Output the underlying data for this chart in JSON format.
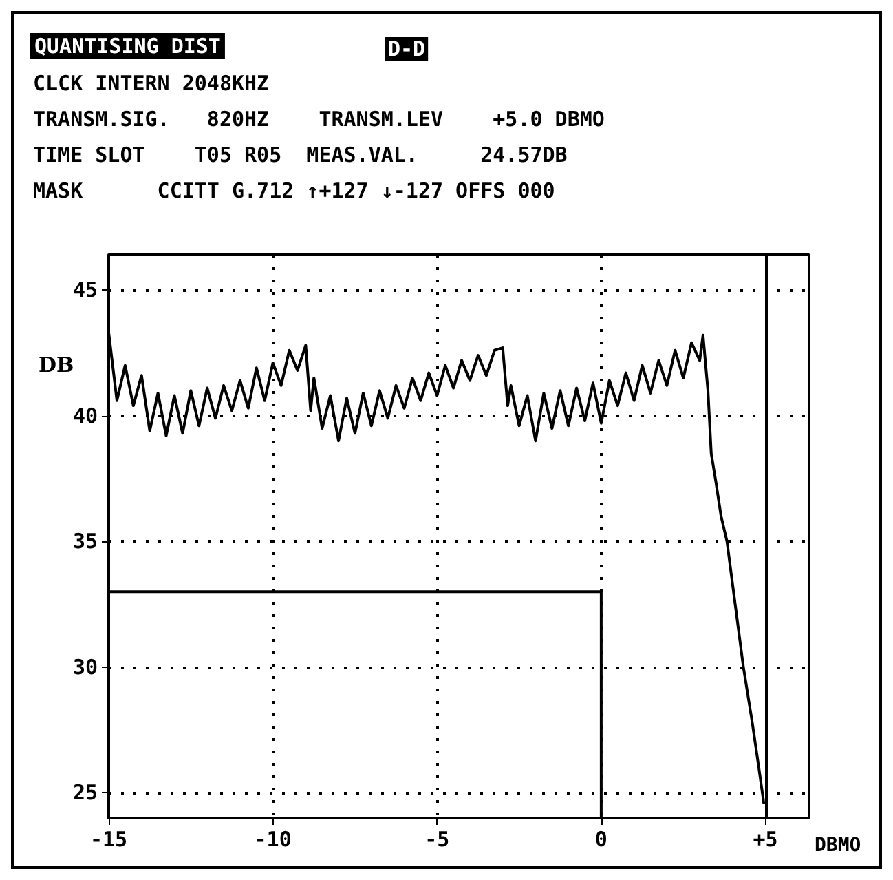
{
  "chart_data": {
    "type": "line",
    "title": "QUANTISING DIST",
    "xlabel": "DBMO",
    "ylabel": "DB",
    "annotations": [
      "D-D",
      "CLCK INTERN 2048KHZ",
      "TRANSM.SIG.   820HZ    TRANSM.LEV    +5.0 DBMO",
      "TIME SLOT    T05 R05  MEAS.VAL.     24.57DB",
      "MASK      CCITT G.712 ↑+127 ↓-127 OFFS 000"
    ],
    "series": [
      {
        "color": "#000000",
        "x": [
          -15,
          -14.75,
          -14.5,
          -14.25,
          -14,
          -13.75,
          -13.5,
          -13.25,
          -13,
          -12.75,
          -12.5,
          -12.25,
          -12,
          -11.75,
          -11.5,
          -11.25,
          -11,
          -10.75,
          -10.5,
          -10.25,
          -10,
          -9.75,
          -9.5,
          -9.25,
          -9,
          -8.85,
          -8.75,
          -8.5,
          -8.25,
          -8,
          -7.75,
          -7.5,
          -7.25,
          -7,
          -6.75,
          -6.5,
          -6.25,
          -6,
          -5.75,
          -5.5,
          -5.25,
          -5,
          -4.75,
          -4.5,
          -4.25,
          -4,
          -3.75,
          -3.5,
          -3.25,
          -3,
          -2.85,
          -2.75,
          -2.5,
          -2.25,
          -2,
          -1.75,
          -1.5,
          -1.25,
          -1,
          -0.75,
          -0.5,
          -0.25,
          0,
          0.25,
          0.5,
          0.75,
          1,
          1.25,
          1.5,
          1.75,
          2,
          2.25,
          2.5,
          2.75,
          3,
          3.1,
          3.25,
          3.35,
          3.5,
          3.65,
          3.83,
          4.1,
          4.33,
          4.6,
          4.8,
          4.95
        ],
        "values": [
          43.3,
          40.6,
          42.0,
          40.4,
          41.6,
          39.4,
          40.9,
          39.2,
          40.8,
          39.3,
          41.0,
          39.6,
          41.1,
          39.9,
          41.2,
          40.2,
          41.4,
          40.3,
          41.9,
          40.6,
          42.1,
          41.2,
          42.6,
          41.8,
          42.8,
          40.2,
          41.5,
          39.5,
          40.8,
          39.0,
          40.7,
          39.3,
          40.9,
          39.6,
          41.0,
          39.9,
          41.2,
          40.3,
          41.5,
          40.6,
          41.7,
          40.8,
          42.0,
          41.1,
          42.2,
          41.4,
          42.4,
          41.6,
          42.6,
          42.7,
          40.4,
          41.2,
          39.6,
          40.8,
          39.0,
          40.9,
          39.5,
          41.0,
          39.6,
          41.1,
          39.8,
          41.3,
          39.7,
          41.4,
          40.4,
          41.7,
          40.6,
          42.0,
          40.9,
          42.2,
          41.2,
          42.6,
          41.5,
          42.9,
          42.2,
          43.2,
          41.0,
          38.5,
          37.3,
          36.0,
          35.0,
          32.3,
          30.0,
          27.8,
          26.0,
          24.6
        ]
      },
      {
        "color": "#000000",
        "x": [
          -15,
          0,
          0
        ],
        "values": [
          33,
          33,
          24
        ]
      }
    ],
    "xlim": [
      -15,
      6.33
    ],
    "xticks": [
      -15,
      -10,
      -5,
      0,
      {
        "value": 5,
        "label": "+5"
      }
    ],
    "ylim": [
      24,
      46.4
    ],
    "yticks": [
      25,
      30,
      35,
      40,
      45
    ],
    "ref_lines": [
      {
        "axis": "x",
        "value": 5,
        "color": "#000000"
      }
    ],
    "grid": true,
    "marker": "none",
    "line_style": "solid"
  }
}
